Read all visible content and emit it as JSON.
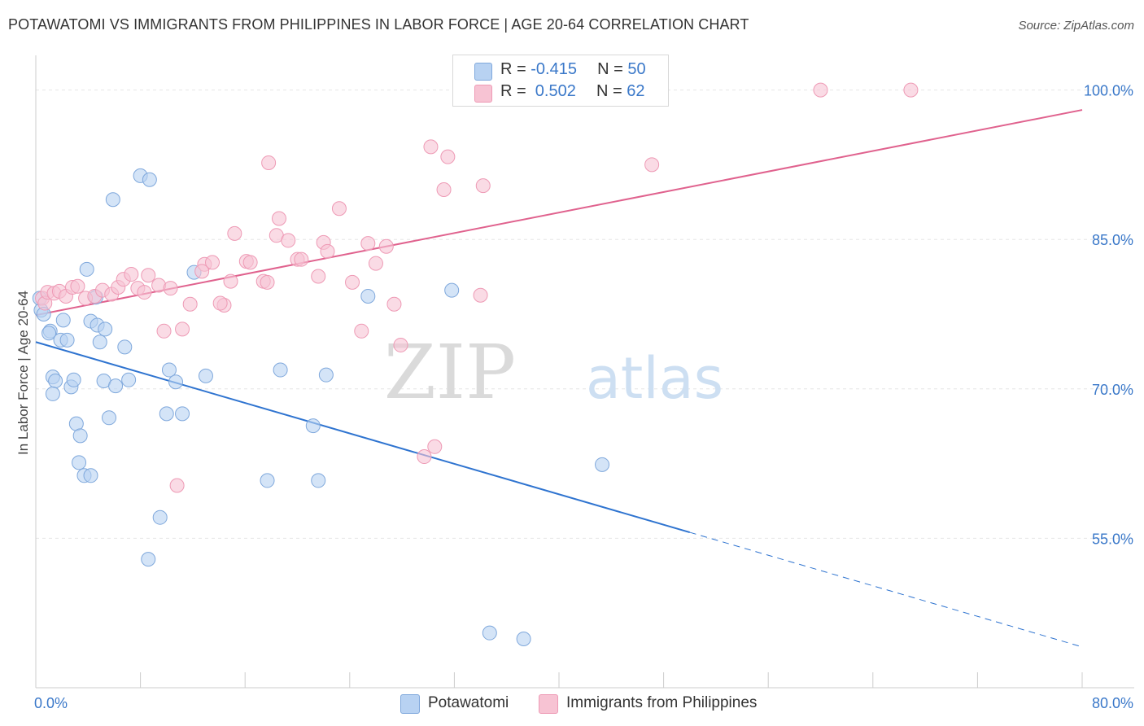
{
  "title": "POTAWATOMI VS IMMIGRANTS FROM PHILIPPINES IN LABOR FORCE | AGE 20-64 CORRELATION CHART",
  "source": "Source: ZipAtlas.com",
  "watermark": {
    "part1": "ZIP",
    "part2": "atlas"
  },
  "legend": {
    "rows": [
      {
        "r_label": "R =",
        "r_value": "-0.415",
        "n_label": "N =",
        "n_value": "50"
      },
      {
        "r_label": "R =",
        "r_value": " 0.502",
        "n_label": "N =",
        "n_value": "62"
      }
    ]
  },
  "colors": {
    "blue_fill": "#b8d2f2",
    "blue_stroke": "#7fa8dc",
    "blue_line": "#2f74d0",
    "pink_fill": "#f7c3d3",
    "pink_stroke": "#ee9ab5",
    "pink_line": "#e0628e",
    "tick_label": "#3a78c9",
    "grid": "#e6e6e6"
  },
  "chart_data": {
    "type": "scatter",
    "title": "POTAWATOMI VS IMMIGRANTS FROM PHILIPPINES IN LABOR FORCE | AGE 20-64 CORRELATION CHART",
    "xlabel": "",
    "ylabel": "In Labor Force | Age 20-64",
    "xlim": [
      0,
      80
    ],
    "ylim": [
      40,
      102.5
    ],
    "x_tick_labels": [
      {
        "value": 0,
        "label": "0.0%"
      },
      {
        "value": 80,
        "label": "80.0%"
      }
    ],
    "y_tick_labels": [
      {
        "value": 55,
        "label": "55.0%"
      },
      {
        "value": 70,
        "label": "70.0%"
      },
      {
        "value": 85,
        "label": "85.0%"
      },
      {
        "value": 100,
        "label": "100.0%"
      }
    ],
    "grid": true,
    "legend_position": "top-center",
    "series": [
      {
        "name": "Potawatomi",
        "color": "#b8d2f2",
        "r": -0.415,
        "n": 50,
        "trend": {
          "x0": 0,
          "y0": 74.7,
          "x1": 50,
          "y1": 55.6,
          "dashed_to_x": 80,
          "dashed_to_y": 44.1
        },
        "points": [
          [
            0.4,
            77.9
          ],
          [
            0.6,
            77.5
          ],
          [
            0.3,
            79.1
          ],
          [
            1.1,
            75.8
          ],
          [
            1.0,
            75.6
          ],
          [
            2.1,
            76.9
          ],
          [
            1.9,
            74.9
          ],
          [
            2.4,
            74.9
          ],
          [
            4.2,
            76.8
          ],
          [
            4.7,
            76.4
          ],
          [
            5.3,
            76.0
          ],
          [
            4.9,
            74.7
          ],
          [
            6.8,
            74.2
          ],
          [
            1.3,
            71.2
          ],
          [
            1.5,
            70.8
          ],
          [
            2.7,
            70.2
          ],
          [
            2.9,
            70.9
          ],
          [
            5.2,
            70.8
          ],
          [
            6.1,
            70.3
          ],
          [
            7.1,
            70.9
          ],
          [
            1.3,
            69.5
          ],
          [
            10.2,
            71.9
          ],
          [
            10.7,
            70.7
          ],
          [
            13.0,
            71.3
          ],
          [
            18.7,
            71.9
          ],
          [
            22.2,
            71.4
          ],
          [
            5.6,
            67.1
          ],
          [
            3.1,
            66.5
          ],
          [
            3.4,
            65.3
          ],
          [
            10.0,
            67.5
          ],
          [
            11.2,
            67.5
          ],
          [
            21.2,
            66.3
          ],
          [
            3.3,
            62.6
          ],
          [
            3.7,
            61.3
          ],
          [
            4.2,
            61.3
          ],
          [
            17.7,
            60.8
          ],
          [
            21.6,
            60.8
          ],
          [
            43.3,
            62.4
          ],
          [
            9.5,
            57.1
          ],
          [
            8.6,
            52.9
          ],
          [
            8.0,
            91.4
          ],
          [
            8.7,
            91.0
          ],
          [
            5.9,
            89.0
          ],
          [
            3.9,
            82.0
          ],
          [
            12.1,
            81.7
          ],
          [
            4.6,
            79.2
          ],
          [
            25.4,
            79.3
          ],
          [
            31.8,
            79.9
          ],
          [
            34.7,
            45.5
          ],
          [
            37.3,
            44.9
          ]
        ]
      },
      {
        "name": "Immigrants from Philippines",
        "color": "#f7c3d3",
        "r": 0.502,
        "n": 62,
        "trend": {
          "x0": 0,
          "y0": 77.4,
          "x1": 80,
          "y1": 98.0
        },
        "points": [
          [
            0.5,
            79.1
          ],
          [
            0.7,
            78.6
          ],
          [
            0.9,
            79.7
          ],
          [
            1.4,
            79.6
          ],
          [
            1.8,
            79.8
          ],
          [
            2.3,
            79.3
          ],
          [
            2.8,
            80.2
          ],
          [
            3.2,
            80.3
          ],
          [
            3.8,
            79.1
          ],
          [
            4.5,
            79.3
          ],
          [
            5.1,
            79.9
          ],
          [
            5.8,
            79.5
          ],
          [
            6.3,
            80.2
          ],
          [
            6.7,
            81.0
          ],
          [
            7.3,
            81.5
          ],
          [
            7.8,
            80.1
          ],
          [
            8.3,
            79.7
          ],
          [
            8.6,
            81.4
          ],
          [
            9.4,
            80.4
          ],
          [
            10.3,
            80.1
          ],
          [
            11.2,
            76.0
          ],
          [
            11.8,
            78.5
          ],
          [
            9.8,
            75.8
          ],
          [
            12.9,
            82.5
          ],
          [
            13.5,
            82.7
          ],
          [
            12.7,
            81.8
          ],
          [
            14.9,
            80.8
          ],
          [
            14.4,
            78.4
          ],
          [
            14.1,
            78.6
          ],
          [
            15.2,
            85.6
          ],
          [
            16.1,
            82.8
          ],
          [
            16.4,
            82.7
          ],
          [
            17.4,
            80.8
          ],
          [
            17.7,
            80.7
          ],
          [
            18.4,
            85.4
          ],
          [
            18.6,
            87.1
          ],
          [
            19.3,
            84.9
          ],
          [
            20.0,
            83.0
          ],
          [
            20.3,
            83.0
          ],
          [
            21.6,
            81.3
          ],
          [
            22.0,
            84.7
          ],
          [
            22.3,
            83.8
          ],
          [
            23.2,
            88.1
          ],
          [
            24.2,
            80.7
          ],
          [
            24.9,
            75.8
          ],
          [
            25.4,
            84.6
          ],
          [
            26.0,
            82.6
          ],
          [
            26.8,
            84.3
          ],
          [
            27.4,
            78.5
          ],
          [
            27.9,
            74.4
          ],
          [
            17.8,
            92.7
          ],
          [
            30.2,
            94.3
          ],
          [
            31.5,
            93.3
          ],
          [
            31.2,
            90.0
          ],
          [
            34.2,
            90.4
          ],
          [
            34.0,
            79.4
          ],
          [
            29.7,
            63.2
          ],
          [
            30.5,
            64.2
          ],
          [
            10.8,
            60.3
          ],
          [
            47.1,
            92.5
          ],
          [
            60.0,
            100.0
          ],
          [
            66.9,
            100.0
          ]
        ]
      }
    ]
  },
  "bottom_legend": [
    {
      "label": "Potawatomi"
    },
    {
      "label": "Immigrants from Philippines"
    }
  ]
}
